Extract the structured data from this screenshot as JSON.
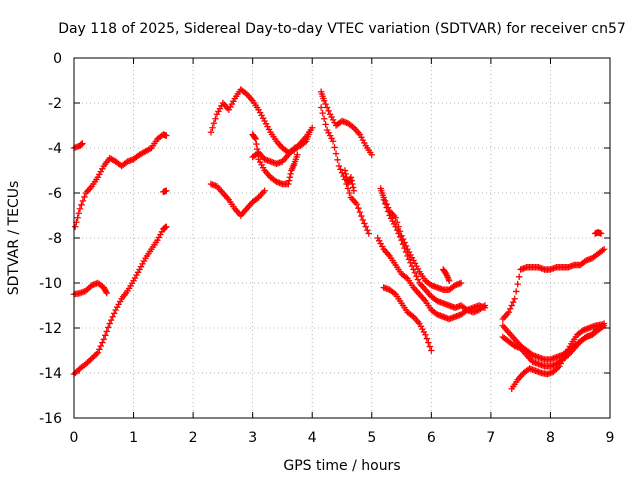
{
  "chart_data": {
    "type": "scatter",
    "title": "Day 118 of 2025, Sidereal Day-to-day VTEC variation (SDTVAR) for receiver cn57",
    "xlabel": "GPS time / hours",
    "ylabel": "SDTVAR / TECUs",
    "xlim": [
      0,
      9
    ],
    "ylim": [
      -16,
      0
    ],
    "xticks": [
      0,
      1,
      2,
      3,
      4,
      5,
      6,
      7,
      8,
      9
    ],
    "yticks": [
      0,
      -2,
      -4,
      -6,
      -8,
      -10,
      -12,
      -14,
      -16
    ],
    "xtick_labels": [
      "0",
      "1",
      "2",
      "3",
      "4",
      "5",
      "6",
      "7",
      "8",
      "9"
    ],
    "ytick_labels": [
      "0",
      "-2",
      "-4",
      "-6",
      "-8",
      "-10",
      "-12",
      "-14",
      "-16"
    ],
    "grid": true,
    "marker": "+",
    "color": "#ff0000",
    "series": [
      {
        "name": "a",
        "points": [
          [
            0,
            -4.0
          ],
          [
            0.1,
            -3.9
          ],
          [
            0.14,
            -3.8
          ]
        ]
      },
      {
        "name": "b",
        "points": [
          [
            0.02,
            -7.5
          ],
          [
            0.1,
            -6.7
          ],
          [
            0.2,
            -6.0
          ],
          [
            0.3,
            -5.7
          ],
          [
            0.4,
            -5.3
          ],
          [
            0.5,
            -4.8
          ],
          [
            0.6,
            -4.45
          ],
          [
            0.7,
            -4.6
          ],
          [
            0.8,
            -4.8
          ],
          [
            0.9,
            -4.6
          ],
          [
            1.0,
            -4.5
          ],
          [
            1.1,
            -4.3
          ],
          [
            1.2,
            -4.15
          ],
          [
            1.3,
            -4.0
          ],
          [
            1.4,
            -3.6
          ],
          [
            1.5,
            -3.4
          ],
          [
            1.55,
            -3.45
          ]
        ]
      },
      {
        "name": "c",
        "points": [
          [
            0,
            -10.5
          ],
          [
            0.1,
            -10.45
          ],
          [
            0.2,
            -10.35
          ],
          [
            0.3,
            -10.1
          ],
          [
            0.4,
            -10.0
          ],
          [
            0.5,
            -10.2
          ],
          [
            0.55,
            -10.45
          ]
        ]
      },
      {
        "name": "d",
        "points": [
          [
            0,
            -14.05
          ],
          [
            0.1,
            -13.8
          ],
          [
            0.2,
            -13.6
          ],
          [
            0.3,
            -13.35
          ],
          [
            0.4,
            -13.1
          ],
          [
            0.5,
            -12.5
          ],
          [
            0.6,
            -11.8
          ],
          [
            0.7,
            -11.2
          ],
          [
            0.8,
            -10.7
          ],
          [
            0.9,
            -10.35
          ],
          [
            1.0,
            -9.9
          ],
          [
            1.1,
            -9.4
          ],
          [
            1.2,
            -8.9
          ],
          [
            1.3,
            -8.5
          ],
          [
            1.4,
            -8.1
          ],
          [
            1.5,
            -7.6
          ],
          [
            1.55,
            -7.5
          ]
        ]
      },
      {
        "name": "e",
        "points": [
          [
            1.5,
            -5.95
          ],
          [
            1.55,
            -5.9
          ]
        ]
      },
      {
        "name": "f",
        "points": [
          [
            2.3,
            -3.3
          ],
          [
            2.4,
            -2.5
          ],
          [
            2.5,
            -2.0
          ],
          [
            2.6,
            -2.3
          ],
          [
            2.7,
            -1.8
          ],
          [
            2.8,
            -1.4
          ],
          [
            2.9,
            -1.6
          ],
          [
            3.0,
            -1.9
          ],
          [
            3.1,
            -2.3
          ],
          [
            3.2,
            -2.8
          ],
          [
            3.3,
            -3.3
          ],
          [
            3.4,
            -3.7
          ],
          [
            3.5,
            -4.0
          ],
          [
            3.6,
            -4.2
          ],
          [
            3.7,
            -4.1
          ],
          [
            3.8,
            -3.8
          ],
          [
            3.9,
            -3.5
          ],
          [
            4.0,
            -3.1
          ]
        ]
      },
      {
        "name": "g",
        "points": [
          [
            2.3,
            -5.6
          ],
          [
            2.4,
            -5.7
          ],
          [
            2.5,
            -6.0
          ],
          [
            2.6,
            -6.3
          ],
          [
            2.7,
            -6.7
          ],
          [
            2.8,
            -7.0
          ],
          [
            2.9,
            -6.7
          ],
          [
            3.0,
            -6.4
          ],
          [
            3.1,
            -6.2
          ],
          [
            3.2,
            -5.9
          ]
        ]
      },
      {
        "name": "h",
        "points": [
          [
            3.0,
            -4.4
          ],
          [
            3.1,
            -4.2
          ],
          [
            3.2,
            -4.5
          ],
          [
            3.3,
            -4.6
          ],
          [
            3.4,
            -4.7
          ],
          [
            3.5,
            -4.6
          ],
          [
            3.6,
            -4.3
          ],
          [
            3.7,
            -4.0
          ],
          [
            3.8,
            -3.9
          ],
          [
            3.9,
            -3.7
          ],
          [
            3.95,
            -3.3
          ]
        ]
      },
      {
        "name": "i",
        "points": [
          [
            3.0,
            -3.4
          ],
          [
            3.05,
            -3.6
          ],
          [
            3.1,
            -4.5
          ],
          [
            3.2,
            -5.0
          ],
          [
            3.3,
            -5.3
          ],
          [
            3.4,
            -5.5
          ],
          [
            3.5,
            -5.6
          ],
          [
            3.6,
            -5.6
          ],
          [
            3.65,
            -5.0
          ],
          [
            3.7,
            -4.7
          ],
          [
            3.75,
            -4.3
          ]
        ]
      },
      {
        "name": "j",
        "points": [
          [
            4.15,
            -1.5
          ],
          [
            4.2,
            -1.9
          ],
          [
            4.3,
            -2.5
          ],
          [
            4.4,
            -3.0
          ],
          [
            4.5,
            -2.8
          ],
          [
            4.6,
            -2.9
          ],
          [
            4.7,
            -3.1
          ],
          [
            4.8,
            -3.4
          ],
          [
            4.9,
            -3.9
          ],
          [
            5.0,
            -4.3
          ]
        ]
      },
      {
        "name": "k",
        "points": [
          [
            4.15,
            -2.2
          ],
          [
            4.25,
            -3.2
          ],
          [
            4.35,
            -3.7
          ],
          [
            4.45,
            -4.8
          ],
          [
            4.55,
            -5.4
          ],
          [
            4.65,
            -6.2
          ],
          [
            4.75,
            -6.5
          ],
          [
            4.85,
            -7.2
          ],
          [
            4.95,
            -7.8
          ]
        ]
      },
      {
        "name": "l",
        "points": [
          [
            4.55,
            -5.0
          ],
          [
            4.6,
            -5.6
          ],
          [
            4.65,
            -5.3
          ],
          [
            4.7,
            -5.9
          ]
        ]
      },
      {
        "name": "m",
        "points": [
          [
            5.15,
            -5.8
          ],
          [
            5.2,
            -6.2
          ],
          [
            5.3,
            -6.8
          ],
          [
            5.4,
            -7.1
          ],
          [
            5.5,
            -7.9
          ],
          [
            5.6,
            -8.5
          ],
          [
            5.7,
            -9.0
          ],
          [
            5.8,
            -9.5
          ],
          [
            5.9,
            -9.9
          ],
          [
            6.0,
            -10.1
          ],
          [
            6.1,
            -10.2
          ],
          [
            6.2,
            -10.3
          ],
          [
            6.3,
            -10.3
          ],
          [
            6.4,
            -10.1
          ],
          [
            6.5,
            -10.0
          ]
        ]
      },
      {
        "name": "n",
        "points": [
          [
            5.1,
            -8.0
          ],
          [
            5.2,
            -8.5
          ],
          [
            5.3,
            -8.8
          ],
          [
            5.4,
            -9.2
          ],
          [
            5.5,
            -9.6
          ],
          [
            5.6,
            -9.8
          ],
          [
            5.7,
            -10.2
          ],
          [
            5.8,
            -10.5
          ],
          [
            5.9,
            -10.8
          ],
          [
            6.0,
            -11.2
          ],
          [
            6.1,
            -11.4
          ],
          [
            6.2,
            -11.5
          ],
          [
            6.3,
            -11.6
          ],
          [
            6.4,
            -11.5
          ],
          [
            6.5,
            -11.4
          ],
          [
            6.6,
            -11.2
          ],
          [
            6.7,
            -11.1
          ],
          [
            6.8,
            -11.0
          ],
          [
            6.9,
            -11.1
          ]
        ]
      },
      {
        "name": "o",
        "points": [
          [
            5.2,
            -6.3
          ],
          [
            5.3,
            -7.0
          ],
          [
            5.4,
            -7.5
          ],
          [
            5.5,
            -8.1
          ],
          [
            5.6,
            -8.8
          ],
          [
            5.7,
            -9.4
          ],
          [
            5.8,
            -10.0
          ],
          [
            5.9,
            -10.3
          ],
          [
            6.0,
            -10.6
          ],
          [
            6.1,
            -10.8
          ],
          [
            6.2,
            -10.9
          ],
          [
            6.3,
            -11.0
          ],
          [
            6.4,
            -11.1
          ],
          [
            6.5,
            -11.0
          ],
          [
            6.6,
            -11.2
          ],
          [
            6.7,
            -11.3
          ],
          [
            6.8,
            -11.2
          ],
          [
            6.9,
            -11.0
          ]
        ]
      },
      {
        "name": "p",
        "points": [
          [
            5.2,
            -10.2
          ],
          [
            5.3,
            -10.3
          ],
          [
            5.4,
            -10.5
          ],
          [
            5.5,
            -10.9
          ],
          [
            5.6,
            -11.3
          ],
          [
            5.7,
            -11.5
          ],
          [
            5.8,
            -11.8
          ],
          [
            5.9,
            -12.3
          ],
          [
            6.0,
            -13.0
          ]
        ]
      },
      {
        "name": "q",
        "points": [
          [
            6.2,
            -9.4
          ],
          [
            6.25,
            -9.6
          ],
          [
            6.3,
            -9.9
          ]
        ]
      },
      {
        "name": "r",
        "points": [
          [
            7.2,
            -11.6
          ],
          [
            7.3,
            -11.3
          ],
          [
            7.4,
            -10.7
          ],
          [
            7.5,
            -9.4
          ],
          [
            7.6,
            -9.3
          ],
          [
            7.7,
            -9.3
          ],
          [
            7.8,
            -9.3
          ],
          [
            7.9,
            -9.4
          ],
          [
            8.0,
            -9.4
          ],
          [
            8.1,
            -9.3
          ],
          [
            8.2,
            -9.3
          ],
          [
            8.3,
            -9.3
          ],
          [
            8.4,
            -9.2
          ],
          [
            8.5,
            -9.2
          ],
          [
            8.6,
            -9.0
          ],
          [
            8.7,
            -8.9
          ],
          [
            8.8,
            -8.7
          ],
          [
            8.9,
            -8.5
          ]
        ]
      },
      {
        "name": "s",
        "points": [
          [
            7.2,
            -11.9
          ],
          [
            7.3,
            -12.2
          ],
          [
            7.4,
            -12.5
          ],
          [
            7.5,
            -12.8
          ],
          [
            7.6,
            -13.0
          ],
          [
            7.7,
            -13.2
          ],
          [
            7.8,
            -13.3
          ],
          [
            7.9,
            -13.4
          ],
          [
            8.0,
            -13.4
          ],
          [
            8.1,
            -13.3
          ],
          [
            8.2,
            -13.2
          ],
          [
            8.3,
            -13.0
          ],
          [
            8.4,
            -12.8
          ],
          [
            8.5,
            -12.6
          ],
          [
            8.6,
            -12.4
          ],
          [
            8.7,
            -12.3
          ],
          [
            8.8,
            -12.1
          ],
          [
            8.9,
            -11.9
          ]
        ]
      },
      {
        "name": "t",
        "points": [
          [
            7.2,
            -12.4
          ],
          [
            7.3,
            -12.6
          ],
          [
            7.4,
            -12.8
          ],
          [
            7.5,
            -12.9
          ],
          [
            7.6,
            -13.2
          ],
          [
            7.7,
            -13.5
          ],
          [
            7.8,
            -13.6
          ],
          [
            7.9,
            -13.7
          ],
          [
            8.0,
            -13.7
          ],
          [
            8.1,
            -13.6
          ],
          [
            8.2,
            -13.4
          ],
          [
            8.3,
            -13.2
          ],
          [
            8.4,
            -12.9
          ],
          [
            8.5,
            -12.6
          ],
          [
            8.6,
            -12.4
          ],
          [
            8.7,
            -12.3
          ],
          [
            8.8,
            -12.0
          ],
          [
            8.9,
            -11.8
          ]
        ]
      },
      {
        "name": "u",
        "points": [
          [
            7.35,
            -14.7
          ],
          [
            7.45,
            -14.3
          ],
          [
            7.55,
            -14.0
          ],
          [
            7.65,
            -13.8
          ],
          [
            7.75,
            -13.9
          ],
          [
            7.85,
            -14.0
          ],
          [
            7.95,
            -14.05
          ],
          [
            8.05,
            -13.95
          ],
          [
            8.15,
            -13.7
          ],
          [
            8.25,
            -13.2
          ],
          [
            8.35,
            -12.7
          ],
          [
            8.45,
            -12.3
          ],
          [
            8.55,
            -12.1
          ],
          [
            8.65,
            -12.0
          ],
          [
            8.75,
            -11.9
          ],
          [
            8.85,
            -11.85
          ]
        ]
      },
      {
        "name": "v",
        "points": [
          [
            8.75,
            -7.8
          ],
          [
            8.8,
            -7.75
          ],
          [
            8.85,
            -7.8
          ]
        ]
      }
    ]
  }
}
